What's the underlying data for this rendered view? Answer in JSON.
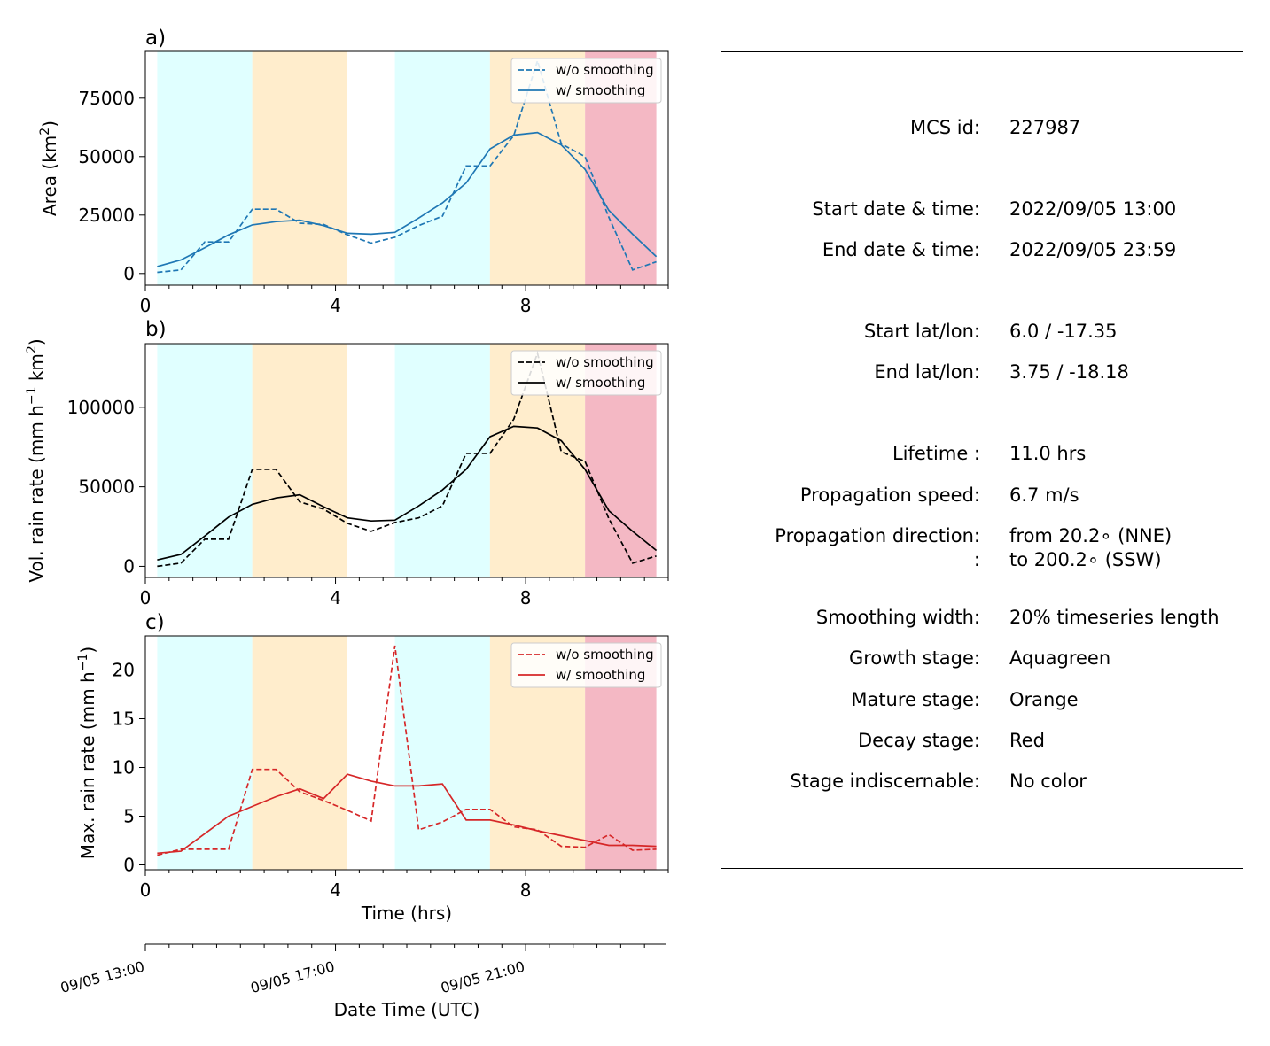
{
  "chart_data": [
    {
      "type": "line",
      "panel_label": "a)",
      "ylabel": "Area  (km²)",
      "ylabel_parts": {
        "text": "Area  (km",
        "sup": "2",
        "tail": ")"
      },
      "xlabel": "",
      "xlim": [
        0,
        11
      ],
      "ylim": [
        -5000,
        95000
      ],
      "xticks": [
        0,
        4,
        8
      ],
      "yticks": [
        0,
        25000,
        50000,
        75000
      ],
      "color": "#1f77b4",
      "legend_position": "top-right",
      "series": [
        {
          "name": "w/o smoothing",
          "style": "dashed",
          "x": [
            0.25,
            0.75,
            1.25,
            1.75,
            2.25,
            2.75,
            3.25,
            3.75,
            4.25,
            4.75,
            5.25,
            5.75,
            6.25,
            6.75,
            7.25,
            7.75,
            8.25,
            8.75,
            9.25,
            9.75,
            10.25,
            10.75
          ],
          "y": [
            500,
            1500,
            13500,
            13500,
            27500,
            27500,
            21500,
            21000,
            16500,
            13000,
            15500,
            20500,
            24500,
            46000,
            46000,
            59000,
            91000,
            55500,
            50000,
            24000,
            1500,
            5000
          ]
        },
        {
          "name": "w/ smoothing",
          "style": "solid",
          "x": [
            0.25,
            0.75,
            1.25,
            1.75,
            2.25,
            2.75,
            3.25,
            3.75,
            4.25,
            4.75,
            5.25,
            5.75,
            6.25,
            6.75,
            7.25,
            7.75,
            8.25,
            8.75,
            9.25,
            9.75,
            10.25,
            10.75
          ],
          "y": [
            3000,
            5800,
            11000,
            16500,
            20800,
            22200,
            22800,
            20500,
            17200,
            16800,
            17600,
            23700,
            30200,
            38700,
            53300,
            59200,
            60300,
            55000,
            44600,
            27000,
            16800,
            7200
          ]
        }
      ]
    },
    {
      "type": "line",
      "panel_label": "b)",
      "ylabel": "Vol. rain rate (mm h⁻¹ km²)",
      "ylabel_parts": {
        "text": "Vol. rain rate (mm h",
        "sup": "−1",
        "mid": " km",
        "sup2": "2",
        "tail": ")"
      },
      "xlabel": "",
      "xlim": [
        0,
        11
      ],
      "ylim": [
        -7000,
        140000
      ],
      "xticks": [
        0,
        4,
        8
      ],
      "yticks": [
        0,
        50000,
        100000
      ],
      "color": "#000000",
      "legend_position": "top-right",
      "series": [
        {
          "name": "w/o smoothing",
          "style": "dashed",
          "x": [
            0.25,
            0.75,
            1.25,
            1.75,
            2.25,
            2.75,
            3.25,
            3.75,
            4.25,
            4.75,
            5.25,
            5.75,
            6.25,
            6.75,
            7.25,
            7.75,
            8.25,
            8.75,
            9.25,
            9.75,
            10.25,
            10.75
          ],
          "y": [
            0,
            2000,
            17000,
            17000,
            61000,
            61000,
            40500,
            36000,
            27000,
            22000,
            27500,
            30500,
            38000,
            71000,
            71000,
            92500,
            134000,
            72000,
            66000,
            30000,
            2000,
            6500
          ]
        },
        {
          "name": "w/ smoothing",
          "style": "solid",
          "x": [
            0.25,
            0.75,
            1.25,
            1.75,
            2.25,
            2.75,
            3.25,
            3.75,
            4.25,
            4.75,
            5.25,
            5.75,
            6.25,
            6.75,
            7.25,
            7.75,
            8.25,
            8.75,
            9.25,
            9.75,
            10.25,
            10.75
          ],
          "y": [
            4000,
            7500,
            19000,
            31000,
            39000,
            43000,
            45000,
            37500,
            30500,
            28500,
            29000,
            38000,
            48000,
            61000,
            81500,
            88000,
            87000,
            79000,
            61000,
            35000,
            22000,
            10000
          ]
        }
      ]
    },
    {
      "type": "line",
      "panel_label": "c)",
      "ylabel": "Max. rain rate  (mm h⁻¹)",
      "ylabel_parts": {
        "text": "Max. rain rate  (mm h",
        "sup": "−1",
        "tail": ")"
      },
      "xlabel": "Time (hrs)",
      "xlim": [
        0,
        11
      ],
      "ylim": [
        -0.5,
        23.5
      ],
      "xticks": [
        0,
        4,
        8
      ],
      "yticks": [
        0,
        5,
        10,
        15,
        20
      ],
      "color": "#d62728",
      "legend_position": "top-right",
      "series": [
        {
          "name": "w/o smoothing",
          "style": "dashed",
          "x": [
            0.25,
            0.75,
            1.25,
            1.75,
            2.25,
            2.75,
            3.25,
            3.75,
            4.25,
            4.75,
            5.25,
            5.75,
            6.25,
            6.75,
            7.25,
            7.75,
            8.25,
            8.75,
            9.25,
            9.75,
            10.25,
            10.75
          ],
          "y": [
            1.0,
            1.6,
            1.6,
            1.6,
            9.8,
            9.8,
            7.5,
            6.6,
            5.6,
            4.5,
            22.5,
            3.6,
            4.4,
            5.7,
            5.7,
            3.9,
            3.6,
            1.9,
            1.8,
            3.1,
            1.5,
            1.6
          ]
        },
        {
          "name": "w/ smoothing",
          "style": "solid",
          "x": [
            0.25,
            0.75,
            1.25,
            1.75,
            2.25,
            2.75,
            3.25,
            3.75,
            4.25,
            4.75,
            5.25,
            5.75,
            6.25,
            6.75,
            7.25,
            7.75,
            8.25,
            8.75,
            9.25,
            9.75,
            10.25,
            10.75
          ],
          "y": [
            1.2,
            1.4,
            3.2,
            5.0,
            6.0,
            7.0,
            7.8,
            6.8,
            9.3,
            8.6,
            8.1,
            8.1,
            8.3,
            4.6,
            4.6,
            4.1,
            3.5,
            3.0,
            2.5,
            2.0,
            2.0,
            1.9
          ]
        }
      ]
    }
  ],
  "stage_bands": [
    {
      "stage": "growth",
      "color": "#e0ffff",
      "x": [
        0.25,
        2.25
      ]
    },
    {
      "stage": "mature",
      "color": "#ffedcc",
      "x": [
        2.25,
        4.25
      ]
    },
    {
      "stage": "growth",
      "color": "#e0ffff",
      "x": [
        5.25,
        7.25
      ]
    },
    {
      "stage": "mature",
      "color": "#ffedcc",
      "x": [
        7.25,
        9.25
      ]
    },
    {
      "stage": "decay",
      "color": "#f4b8c4",
      "x": [
        9.25,
        10.75
      ]
    }
  ],
  "date_axis": {
    "xlabel": "Date Time (UTC)",
    "ticks": [
      {
        "x": 0,
        "label": "09/05 13:00"
      },
      {
        "x": 4,
        "label": "09/05 17:00"
      },
      {
        "x": 8,
        "label": "09/05 21:00"
      }
    ]
  },
  "info": {
    "mcs_id_label": "MCS id:",
    "mcs_id": "227987",
    "start_label": "Start date & time:",
    "start": "2022/09/05 13:00",
    "end_label": "End date & time:",
    "end": "2022/09/05 23:59",
    "start_latlon_label": "Start lat/lon:",
    "start_latlon": "6.0 / -17.35",
    "end_latlon_label": "End lat/lon:",
    "end_latlon": "3.75 / -18.18",
    "lifetime_label": "Lifetime :",
    "lifetime": "11.0 hrs",
    "speed_label": "Propagation speed:",
    "speed": "6.7 m/s",
    "direction_label": "Propagation direction:",
    "direction_from": "from  20.2∘ (NNE)",
    "direction_colon": ":",
    "direction_to": "to   200.2∘ (SSW)",
    "smoothing_label": "Smoothing width:",
    "smoothing": "20% timeseries length",
    "growth_label": "Growth stage:",
    "growth": "Aquagreen",
    "mature_label": "Mature stage:",
    "mature": "Orange",
    "decay_label": "Decay stage:",
    "decay": "Red",
    "indisc_label": "Stage indiscernable:",
    "indisc": "No color"
  }
}
